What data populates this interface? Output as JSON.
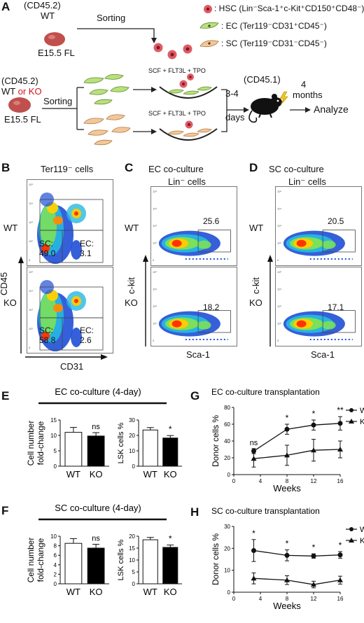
{
  "panel_letters": {
    "A": "A",
    "B": "B",
    "C": "C",
    "D": "D",
    "E": "E",
    "F": "F",
    "G": "G",
    "H": "H"
  },
  "schematic": {
    "top_donor": "(CD45.2)",
    "top_genotype": "WT",
    "top_source": "E15.5 FL",
    "top_sorting": "Sorting",
    "legend_hsc": ": HSC (Lin⁻Sca-1⁺c-Kit⁺CD150⁺CD48⁻)",
    "legend_ec": ": EC (Ter119⁻CD31⁺CD45⁻)",
    "legend_sc": ": SC (Ter119⁻CD31⁻CD45⁻)",
    "bottom_donor": "(CD45.2)",
    "bottom_wt": "WT",
    "bottom_or": " or ",
    "bottom_ko": "KO",
    "bottom_source": "E15.5 FL",
    "bottom_sorting": "Sorting",
    "cytokines_1": "SCF + FLT3L + TPO",
    "cytokines_2": "SCF + FLT3L + TPO",
    "days": "3-4",
    "days2": "days",
    "recipient": "(CD45.1)",
    "months": "4",
    "months2": "months",
    "analyze": "Analyze",
    "colors": {
      "hsc": "#e05a66",
      "ec": "#b8e07c",
      "sc": "#f2c79a",
      "fl": "#c0504d"
    }
  },
  "panel_B": {
    "title": "Ter119⁻ cells",
    "row_wt": "WT",
    "row_ko": "KO",
    "ylabel": "CD45",
    "xlabel": "CD31",
    "wt_sc_label": "SC:",
    "wt_sc_value": "49.0",
    "wt_ec_label": "EC:",
    "wt_ec_value": "3.1",
    "ko_sc_label": "SC:",
    "ko_sc_value": "58.8",
    "ko_ec_label": "EC:",
    "ko_ec_value": "2.6"
  },
  "panel_C": {
    "title1": "EC co-culture",
    "title2": "Lin⁻ cells",
    "row_wt": "WT",
    "row_ko": "KO",
    "ylabel": "c-kit",
    "xlabel": "Sca-1",
    "wt_value": "25.6",
    "ko_value": "18.2"
  },
  "panel_D": {
    "title1": "SC co-culture",
    "title2": "Lin⁻ cells",
    "row_wt": "WT",
    "row_ko": "KO",
    "ylabel": "c-kit",
    "xlabel": "Sca-1",
    "wt_value": "20.5",
    "ko_value": "17.1"
  },
  "flow_axis_ticks": [
    "10⁵",
    "10⁴",
    "10³",
    "10²",
    "0"
  ],
  "chart_data": [
    {
      "id": "E1",
      "type": "bar",
      "title": "EC co-culture (4-day)",
      "ylabel": "Cell number fold-change",
      "ylabel_lines": [
        "Cell number",
        "fold-change"
      ],
      "categories": [
        "WT",
        "KO"
      ],
      "values": [
        11.0,
        9.8
      ],
      "errors": [
        1.6,
        1.1
      ],
      "ylim": [
        0,
        15
      ],
      "yticks": [
        "0",
        "5",
        "10",
        "15"
      ],
      "annotation": "ns",
      "bar_colors": [
        "#ffffff",
        "#000000"
      ]
    },
    {
      "id": "E2",
      "type": "bar",
      "ylabel": "LSK cells %",
      "categories": [
        "WT",
        "KO"
      ],
      "values": [
        23.5,
        18.3
      ],
      "errors": [
        1.6,
        1.6
      ],
      "ylim": [
        0,
        30
      ],
      "yticks": [
        "0",
        "10",
        "20",
        "30"
      ],
      "annotation": "*",
      "bar_colors": [
        "#ffffff",
        "#000000"
      ]
    },
    {
      "id": "F1",
      "type": "bar",
      "title": "SC co-culture (4-day)",
      "ylabel": "Cell number fold-change",
      "ylabel_lines": [
        "Cell number",
        "fold-change"
      ],
      "categories": [
        "WT",
        "KO"
      ],
      "values": [
        8.5,
        7.5
      ],
      "errors": [
        1.0,
        0.8
      ],
      "ylim": [
        0,
        10
      ],
      "yticks": [
        "0",
        "2",
        "4",
        "6",
        "8",
        "10"
      ],
      "annotation": "ns",
      "bar_colors": [
        "#ffffff",
        "#000000"
      ]
    },
    {
      "id": "F2",
      "type": "bar",
      "ylabel": "LSK cells %",
      "categories": [
        "WT",
        "KO"
      ],
      "values": [
        18.5,
        15.3
      ],
      "errors": [
        1.0,
        1.0
      ],
      "ylim": [
        0,
        20
      ],
      "yticks": [
        "0",
        "5",
        "10",
        "15",
        "20"
      ],
      "annotation": "*",
      "bar_colors": [
        "#ffffff",
        "#000000"
      ]
    },
    {
      "id": "G",
      "type": "line",
      "title": "EC co-culture transplantation",
      "xlabel": "Weeks",
      "ylabel": "Donor cells %",
      "x": [
        3,
        8,
        12,
        16
      ],
      "xlim": [
        0,
        16
      ],
      "xticks": [
        "0",
        "4",
        "8",
        "12",
        "16"
      ],
      "ylim": [
        0,
        80
      ],
      "yticks": [
        "0",
        "20",
        "40",
        "60",
        "80"
      ],
      "series": [
        {
          "name": "WT",
          "values": [
            28,
            54,
            59,
            61
          ],
          "errors": [
            3,
            6,
            6,
            8
          ],
          "marker": "circle"
        },
        {
          "name": "KO",
          "values": [
            19,
            23,
            29,
            30
          ],
          "errors": [
            10,
            12,
            13,
            10
          ],
          "marker": "triangle"
        }
      ],
      "annotations": [
        "ns",
        "*",
        "*",
        "**"
      ]
    },
    {
      "id": "H",
      "type": "line",
      "title": "SC co-culture transplantation",
      "xlabel": "Weeks",
      "ylabel": "Donor cells %",
      "x": [
        3,
        8,
        12,
        16
      ],
      "xlim": [
        0,
        16
      ],
      "xticks": [
        "0",
        "4",
        "8",
        "12",
        "16"
      ],
      "ylim": [
        0,
        30
      ],
      "yticks": [
        "0",
        "10",
        "20",
        "30"
      ],
      "series": [
        {
          "name": "WT",
          "values": [
            19,
            16.8,
            16.5,
            17
          ],
          "errors": [
            5,
            2.5,
            1,
            1.5
          ],
          "marker": "circle"
        },
        {
          "name": "KO",
          "values": [
            6.3,
            5.5,
            3.5,
            5.5
          ],
          "errors": [
            2.5,
            2,
            1.5,
            1.8
          ],
          "marker": "triangle"
        }
      ],
      "annotations": [
        "*",
        "*",
        "*",
        "*"
      ]
    }
  ]
}
